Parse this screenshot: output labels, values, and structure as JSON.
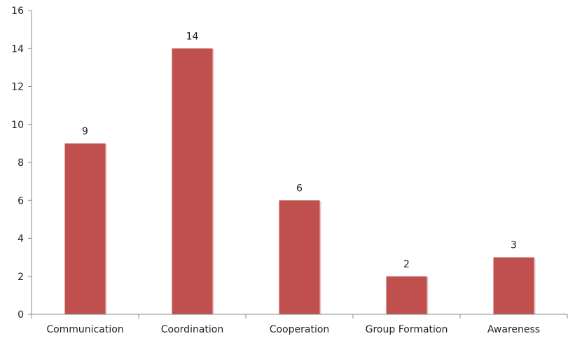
{
  "chart_data": {
    "type": "bar",
    "categories": [
      "Communication",
      "Coordination",
      "Cooperation",
      "Group Formation",
      "Awareness"
    ],
    "values": [
      9,
      14,
      6,
      2,
      3
    ],
    "data_labels": [
      "9",
      "14",
      "6",
      "2",
      "3"
    ],
    "title": "",
    "xlabel": "",
    "ylabel": "",
    "ylim": [
      0,
      16
    ],
    "yticks": [
      0,
      2,
      4,
      6,
      8,
      10,
      12,
      14,
      16
    ],
    "grid": false,
    "legend": "none",
    "colors": {
      "bar": "#C0504D",
      "bar_shadow": "#E8C9C8",
      "axis": "#888888",
      "text": "#222222"
    }
  }
}
